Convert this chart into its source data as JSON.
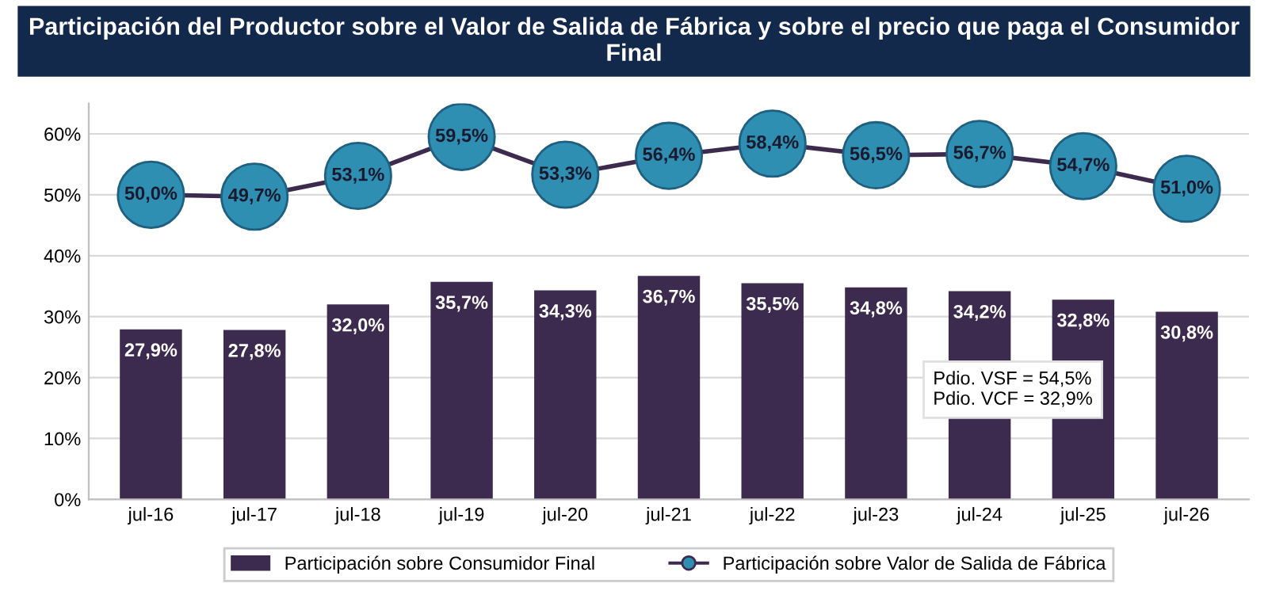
{
  "chart_data": {
    "type": "bar",
    "title": "Participación del Productor sobre el Valor de Salida de Fábrica y sobre el precio que paga el Consumidor Final",
    "categories": [
      "jul-16",
      "jul-17",
      "jul-18",
      "jul-19",
      "jul-20",
      "jul-21",
      "jul-22",
      "jul-23",
      "jul-24",
      "jul-25",
      "jul-26"
    ],
    "series": [
      {
        "name": "Participación sobre Consumidor Final",
        "color": "#3d2b4f",
        "values": [
          27.9,
          27.8,
          32.0,
          35.7,
          34.3,
          36.7,
          35.5,
          34.8,
          34.2,
          32.8,
          30.8
        ],
        "value_labels": [
          "27,9%",
          "27,8%",
          "32,0%",
          "35,7%",
          "34,3%",
          "36,7%",
          "35,5%",
          "34,8%",
          "34,2%",
          "32,8%",
          "30,8%"
        ]
      },
      {
        "name": "Participación sobre Valor de Salida de Fábrica",
        "type": "line",
        "color": "#2f8fb3",
        "marker": "circle",
        "values": [
          50.0,
          49.7,
          53.1,
          59.5,
          53.3,
          56.4,
          58.4,
          56.5,
          56.7,
          54.7,
          51.0
        ],
        "value_labels": [
          "50,0%",
          "49,7%",
          "53,1%",
          "59,5%",
          "53,3%",
          "56,4%",
          "58,4%",
          "56,5%",
          "56,7%",
          "54,7%",
          "51,0%"
        ]
      }
    ],
    "ylim": [
      0,
      65
    ],
    "yticks": [
      {
        "value": 0,
        "label": "0%"
      },
      {
        "value": 10,
        "label": "10%"
      },
      {
        "value": 20,
        "label": "20%"
      },
      {
        "value": 30,
        "label": "30%"
      },
      {
        "value": 40,
        "label": "40%"
      },
      {
        "value": 50,
        "label": "50%"
      },
      {
        "value": 60,
        "label": "60%"
      }
    ],
    "grid": "y",
    "legend": "bottom",
    "annotations": [
      "Pdio. VSF = 54,5%\nPdio. VCF = 32,9%"
    ]
  }
}
